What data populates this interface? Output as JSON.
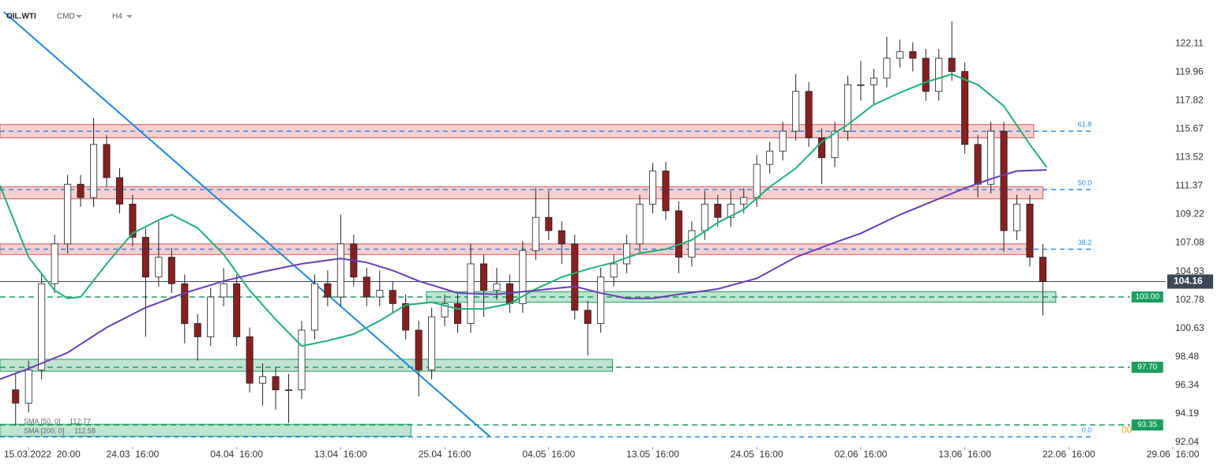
{
  "header": {
    "symbol": "OIL.WTI",
    "market": "CMD",
    "timeframe": "H4"
  },
  "chart_data": {
    "type": "candlestick",
    "x": [
      -1,
      0,
      1,
      2,
      3,
      4,
      5,
      6,
      7,
      8,
      9,
      10,
      11,
      12,
      13,
      14,
      15,
      16,
      17,
      18,
      19,
      20,
      21,
      22,
      23,
      24,
      25,
      26,
      27,
      28,
      29,
      30,
      31,
      32,
      33,
      34,
      35,
      36,
      37,
      38,
      39,
      40,
      41,
      42,
      43,
      44,
      45,
      46,
      47,
      48,
      49,
      50,
      51,
      52,
      53,
      54,
      55,
      56,
      57,
      58,
      59,
      60,
      61,
      62,
      63,
      64,
      65,
      66,
      67,
      68,
      69,
      70,
      71,
      72,
      73,
      74,
      75,
      76,
      77,
      78
    ],
    "open": [
      96,
      95,
      97.5,
      104,
      107,
      111.5,
      110.5,
      114.5,
      112,
      110,
      107.5,
      104.5,
      106,
      104,
      101,
      100,
      103,
      104,
      100,
      96.5,
      97,
      96,
      96,
      100.5,
      104,
      103,
      107,
      104.5,
      103,
      103.5,
      102.5,
      100.5,
      97.5,
      101.5,
      102.5,
      101,
      105.5,
      103.5,
      104,
      102.5,
      106.5,
      109,
      108,
      107,
      102,
      101,
      104.5,
      105.5,
      107,
      110,
      112.5,
      109.5,
      106,
      108,
      110,
      109,
      110,
      110.5,
      113,
      114,
      115.5,
      118.5,
      115,
      113.5,
      115.5,
      119,
      119,
      119.5,
      121,
      121.5,
      121,
      118.5,
      121,
      120,
      114.5,
      111.5,
      115.5,
      108,
      110,
      106
    ],
    "high": [
      97.2,
      98.2,
      104.7,
      107.7,
      112.2,
      112.2,
      116.5,
      115.2,
      112.7,
      110.7,
      108.2,
      108.7,
      106.7,
      104.7,
      101.7,
      103.7,
      105.2,
      104.7,
      100.7,
      98,
      97.7,
      97.2,
      101.2,
      104.7,
      105,
      109.2,
      107.7,
      105.2,
      105,
      104.2,
      103.2,
      101.2,
      102.2,
      103.2,
      103.2,
      107,
      106.2,
      105.2,
      104.7,
      107.2,
      111.2,
      111,
      108.7,
      107.7,
      102.7,
      105.2,
      106.2,
      107.7,
      110.7,
      113.1,
      113.2,
      110.2,
      108.7,
      111,
      110.7,
      111,
      111.2,
      113.7,
      114.7,
      116.2,
      119.8,
      119.2,
      115.7,
      116.2,
      119.7,
      120.8,
      120.2,
      122.6,
      122.4,
      122.2,
      121.7,
      121.7,
      123.8,
      120.7,
      115.2,
      116.2,
      116.2,
      110.7,
      110.7,
      107
    ],
    "low": [
      93.3,
      94.3,
      96.8,
      103.3,
      106.3,
      109.8,
      109.8,
      111.3,
      109.3,
      106.8,
      100,
      103.8,
      103.3,
      99.5,
      98.2,
      99.3,
      102.3,
      99.3,
      95.8,
      94.8,
      94.5,
      93.5,
      95.3,
      99.8,
      102.3,
      102.3,
      103.8,
      102.3,
      102.3,
      101.8,
      99.8,
      95.5,
      96.8,
      100.8,
      100.3,
      100.3,
      101.5,
      102.8,
      101.8,
      101.8,
      105.8,
      107.3,
      105.5,
      101.3,
      98.6,
      100.3,
      103.8,
      104.8,
      106.3,
      109.3,
      108.8,
      104.8,
      105.3,
      107.3,
      108.3,
      108.3,
      109.3,
      109.8,
      112.3,
      113.3,
      114.8,
      114.3,
      111.5,
      112.8,
      114.8,
      117.8,
      117.5,
      118.8,
      120.3,
      120,
      117.8,
      117.8,
      119.3,
      113.8,
      110.5,
      110.8,
      106.4,
      107.3,
      105.3,
      101.6
    ],
    "close": [
      95,
      97.5,
      104,
      107,
      111.5,
      110.5,
      114.5,
      112,
      110,
      107.5,
      104.5,
      106,
      104,
      101,
      100,
      103,
      104,
      100,
      96.5,
      97,
      96,
      96,
      100.5,
      104,
      103,
      107,
      104.5,
      103,
      103.5,
      102.5,
      100.5,
      97.5,
      101.5,
      102.5,
      101,
      105.5,
      103.5,
      104,
      102.5,
      106.5,
      109,
      108,
      107,
      102,
      101,
      104.5,
      105.5,
      107,
      110,
      112.5,
      109.5,
      106,
      108,
      110,
      109,
      110,
      110.5,
      113,
      114,
      115.5,
      118.5,
      115,
      113.5,
      115.5,
      119,
      119,
      119.5,
      121,
      121.5,
      121,
      118.5,
      121,
      120,
      114.5,
      111.5,
      115.5,
      108,
      110,
      106,
      104.16
    ],
    "up_color": "#ffffff",
    "down_color": "#8b1e1e",
    "xlim": [
      -2.2,
      91.7
    ],
    "xticks": [
      {
        "value": 0,
        "label": "15.03.2022  20:00"
      },
      {
        "value": 8,
        "label": "24.03  16:00"
      },
      {
        "value": 16,
        "label": "04.04  16:00"
      },
      {
        "value": 24,
        "label": "13.04  16:00"
      },
      {
        "value": 32,
        "label": "25.04  16:00"
      },
      {
        "value": 40,
        "label": "04.05  16:00"
      },
      {
        "value": 48,
        "label": "13.05  16:00"
      },
      {
        "value": 56,
        "label": "24.05  16:00"
      },
      {
        "value": 64,
        "label": "02.06  16:00"
      },
      {
        "value": 72,
        "label": "13.06  16:00"
      },
      {
        "value": 80,
        "label": "22.06  16:00"
      },
      {
        "value": 88,
        "label": "29.06  16:00"
      }
    ],
    "ylim": [
      91.15,
      125.39
    ],
    "yticks": [
      122.11,
      119.96,
      117.82,
      115.67,
      113.52,
      111.37,
      109.22,
      107.08,
      104.93,
      102.78,
      100.63,
      98.48,
      96.34,
      94.19,
      92.04
    ],
    "sma": [
      {
        "name": "SMA [50, 0]",
        "last": 112.77,
        "color": "#1db37a",
        "x": [
          -2.2,
          0,
          2,
          3,
          4,
          6,
          8,
          10,
          11,
          13,
          15,
          17,
          19,
          21,
          23,
          25,
          27,
          29,
          31,
          33,
          35,
          37,
          39,
          41,
          43,
          45,
          47,
          49,
          51,
          53,
          55,
          57,
          59,
          61,
          63,
          65,
          67,
          69,
          71,
          73,
          75,
          77,
          78.3
        ],
        "values": [
          111.4,
          106,
          103.5,
          102.9,
          103,
          105.5,
          107.8,
          108.8,
          109.2,
          108.2,
          106.2,
          103.5,
          101.3,
          99.3,
          99.7,
          100.2,
          101.2,
          102.4,
          102.6,
          102.1,
          102.1,
          102.5,
          103.6,
          104.5,
          105.1,
          105.6,
          106.3,
          106.6,
          107.3,
          108.6,
          109.6,
          111.3,
          112.7,
          114.7,
          116,
          117.5,
          118.4,
          119.2,
          119.8,
          119,
          117.4,
          114.5,
          112.77
        ]
      },
      {
        "name": "SMA [200, 0]",
        "last": 112.58,
        "color": "#6a3db8",
        "x": [
          -2.2,
          0,
          3,
          6,
          9,
          12,
          15,
          18,
          21,
          24,
          26,
          28,
          30,
          33,
          36,
          39,
          42,
          44,
          46,
          48,
          50,
          53,
          56,
          59,
          62,
          64,
          67,
          69,
          72,
          74,
          76,
          78.3
        ],
        "values": [
          96.8,
          97.6,
          98.8,
          100.7,
          102.2,
          103.3,
          104.2,
          104.9,
          105.5,
          105.9,
          105.6,
          105,
          104.2,
          103.3,
          103.2,
          103.5,
          103.8,
          103.3,
          102.9,
          102.9,
          103.2,
          103.6,
          104.4,
          106,
          107.1,
          107.8,
          109.2,
          110,
          111.2,
          111.9,
          112.5,
          112.58
        ]
      }
    ],
    "zones": [
      {
        "low": 115.0,
        "high": 116.0,
        "x": [
          -2.2,
          77.3
        ],
        "color": "#e05555"
      },
      {
        "low": 110.4,
        "high": 111.3,
        "x": [
          -2.2,
          78.0
        ],
        "color": "#e05555"
      },
      {
        "low": 106.2,
        "high": 107.0,
        "x": [
          -2.2,
          77.2
        ],
        "color": "#e05555"
      },
      {
        "low": 102.6,
        "high": 103.4,
        "x": [
          30.6,
          79.0
        ],
        "color": "#1a9e5c"
      },
      {
        "low": 97.4,
        "high": 98.3,
        "x": [
          -2.2,
          44.9
        ],
        "color": "#1a9e5c"
      },
      {
        "low": 92.5,
        "high": 93.4,
        "x": [
          -2.2,
          29.4
        ],
        "color": "#1a9e5c"
      }
    ],
    "fib": {
      "color": "#2a8fe8",
      "x_end": 82.0,
      "lines": [
        {
          "value": 115.5,
          "label": "61.8"
        },
        {
          "value": 111.1,
          "label": "50.0"
        },
        {
          "value": 106.6,
          "label": "38.2"
        },
        {
          "value": 92.45,
          "label": "0.0"
        }
      ]
    },
    "levels": {
      "color": "#1a9e5c",
      "x_end": 84.7,
      "lines": [
        {
          "value": 103.0,
          "label": "103.00"
        },
        {
          "value": 97.7,
          "label": "97.70"
        },
        {
          "value": 93.35,
          "label": "93.35"
        }
      ]
    },
    "trendline": {
      "x": [
        -1.9,
        35.5
      ],
      "y": [
        124.49,
        92.45
      ],
      "color": "#1e88e5"
    },
    "price": {
      "value": 104.16,
      "color": "#3b4754"
    },
    "annotation": "00"
  }
}
